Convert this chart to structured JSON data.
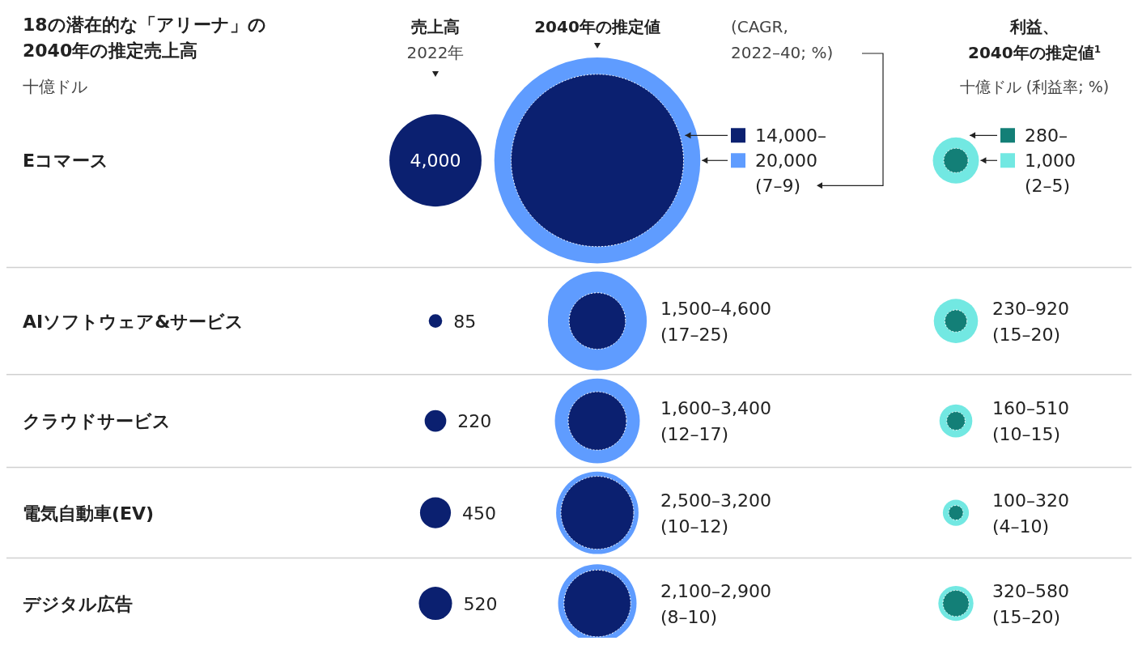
{
  "chart_data": {
    "type": "other",
    "title": "18の潜在的な「アリーナ」の\n2040年の推定売上高",
    "subtitle": "十億ドル",
    "annotations": [
      "2022年",
      "(CAGR,\n2022–40; %)",
      "十億ドル (利益率; %)",
      "2040年の推定値",
      "利益、\n2040年の推定値$^{1}$"
    ],
    "data_labels": true,
    "categories": [
      "Eコマース",
      "AIソフトウェア&サービス",
      "クラウドサービス",
      "電気自動車(EV)",
      "デジタル広告"
    ],
    "series": [
      {
        "name": "売上高",
        "color": "#0b2070",
        "values": [
          4000,
          85,
          220,
          450,
          520
        ],
        "value_labels": [
          "4,000",
          "85",
          "220",
          "450",
          "520"
        ]
      },
      {
        "color": "#0b2070",
        "values": [
          14000,
          1500,
          1600,
          2500,
          2100
        ],
        "value_labels": [
          "14,000–",
          "1,500–",
          "1,600–",
          "2,500–",
          "2,100–"
        ]
      },
      {
        "color": "#5f9cff",
        "values": [
          20000,
          4600,
          3400,
          3200,
          2900
        ],
        "value_labels": [
          "20,000\n(7–9)",
          "4,600\n(17–25)",
          "3,400\n(12–17)",
          "3,200\n(10–12)",
          "2,900\n(8–10)"
        ]
      },
      {
        "color": "#137f77",
        "values": [
          280,
          230,
          160,
          100,
          320
        ],
        "value_labels": [
          "280–",
          "230–",
          "160–",
          "100–",
          "320–"
        ]
      },
      {
        "color": "#72e8e2",
        "values": [
          1000,
          920,
          510,
          320,
          580
        ],
        "value_labels": [
          "1,000\n(2–5)",
          "920\n(15–20)",
          "510\n(10–15)",
          "320\n(4–10)",
          "580\n(15–20)"
        ]
      }
    ]
  }
}
